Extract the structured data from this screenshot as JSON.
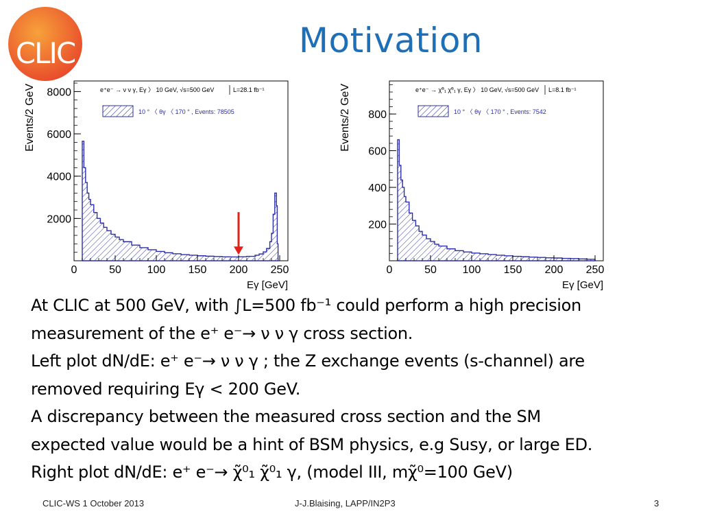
{
  "slide": {
    "title": "Motivation",
    "logo_text": "CLIC",
    "logo_color": "#e8482b",
    "title_color": "#1f6fb7"
  },
  "body_lines": [
    "At CLIC at 500 GeV, with ∫L=500 fb⁻¹ could perform a high precision",
    "measurement of the e⁺ e⁻→ ν ν γ cross section.",
    "Left plot dN/dE: e⁺ e⁻→ ν ν γ ; the Z exchange events (s-channel) are",
    "removed requiring Eγ < 200 GeV.",
    "A discrepancy between the measured cross section and the SM",
    "expected value would be a hint of BSM physics, e.g Susy, or large ED.",
    "Right plot dN/dE: e⁺ e⁻→ χ̃⁰₁ χ̃⁰₁ γ, (model III, mχ̃⁰=100 GeV)"
  ],
  "footer": {
    "left": "CLIC-WS 1 October 2013",
    "center": "J-J.Blaising, LAPP/IN2P3",
    "page": "3"
  },
  "chart_data": [
    {
      "type": "area",
      "title": "e⁺e⁻ → ν ν γ, E_γ 〉 10 GeV, √s=500 GeV",
      "luminosity": "L=28.1 fb⁻¹",
      "legend": "10 ° 〈 θ_γ 〈 170 ° , Events: 78505",
      "ylabel": "Events/2 GeV",
      "xlabel": "E_γ [GeV]",
      "xlim": [
        0,
        260
      ],
      "ylim": [
        0,
        8500
      ],
      "xticks": [
        0,
        50,
        100,
        150,
        200,
        250
      ],
      "yticks": [
        2000,
        4000,
        6000,
        8000
      ],
      "x": [
        10,
        12,
        14,
        16,
        18,
        20,
        24,
        28,
        32,
        36,
        40,
        45,
        50,
        55,
        60,
        70,
        80,
        90,
        100,
        110,
        120,
        130,
        140,
        150,
        160,
        170,
        180,
        190,
        200,
        210,
        220,
        225,
        230,
        234,
        238,
        240,
        242,
        244,
        246,
        247,
        248
      ],
      "values": [
        5650,
        4400,
        3700,
        3200,
        2900,
        2650,
        2280,
        2000,
        1780,
        1580,
        1420,
        1250,
        1120,
        1000,
        900,
        740,
        620,
        520,
        440,
        380,
        330,
        290,
        260,
        235,
        215,
        200,
        185,
        180,
        190,
        210,
        260,
        320,
        420,
        580,
        900,
        1300,
        2200,
        3200,
        2600,
        800,
        0
      ],
      "annotation": "arrow at E_γ = 200 GeV",
      "annotation_color": "#e0221a",
      "fill_color": "#2b2ea8"
    },
    {
      "type": "area",
      "title": "e⁺e⁻ → χ̃⁰₁ χ̃⁰₁ γ, E_γ 〉 10 GeV, √s=500 GeV",
      "luminosity": "L=8.1 fb⁻¹",
      "legend": "10 ° 〈 θ_γ 〈 170 ° , Events: 7542",
      "ylabel": "Events/2 GeV",
      "xlabel": "E_γ [GeV]",
      "xlim": [
        0,
        260
      ],
      "ylim": [
        0,
        980
      ],
      "xticks": [
        0,
        50,
        100,
        150,
        200,
        250
      ],
      "yticks": [
        200,
        400,
        600,
        800
      ],
      "x": [
        10,
        12,
        14,
        16,
        18,
        20,
        24,
        28,
        32,
        36,
        40,
        45,
        50,
        55,
        60,
        70,
        80,
        90,
        100,
        110,
        120,
        130,
        140,
        150,
        160,
        170,
        180,
        190,
        200,
        210,
        220,
        230,
        240,
        250
      ],
      "values": [
        660,
        520,
        440,
        400,
        350,
        320,
        260,
        220,
        190,
        160,
        140,
        120,
        105,
        90,
        80,
        65,
        55,
        48,
        42,
        38,
        34,
        30,
        27,
        24,
        22,
        20,
        18,
        16,
        15,
        13,
        12,
        10,
        8,
        0
      ],
      "fill_color": "#2b2ea8"
    }
  ]
}
